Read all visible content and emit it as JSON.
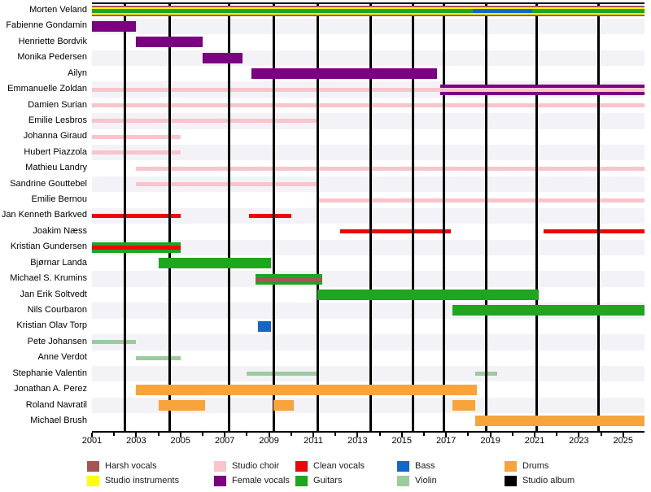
{
  "chart_data": {
    "type": "gantt",
    "description": "Band members timeline with roles as colored horizontal bars and studio album release dates as vertical black lines",
    "x_axis": {
      "start": 2001,
      "end": 2025.95,
      "tick_labels": [
        "2001",
        "2003",
        "2005",
        "2007",
        "2009",
        "2011",
        "2013",
        "2015",
        "2017",
        "2019",
        "2021",
        "2023",
        "2025"
      ],
      "minor_tick_years": [
        2002,
        2004,
        2006,
        2008,
        2010,
        2012,
        2014,
        2016,
        2018,
        2020,
        2022,
        2024
      ],
      "grid": "off"
    },
    "legend": [
      {
        "key": "harsh",
        "label": "Harsh vocals",
        "color": "#A85454"
      },
      {
        "key": "instruments",
        "label": "Studio instruments",
        "color": "#FFFF00"
      },
      {
        "key": "choir",
        "label": "Studio choir",
        "color": "#F9C4CC"
      },
      {
        "key": "female",
        "label": "Female vocals",
        "color": "#7B0082"
      },
      {
        "key": "clean",
        "label": "Clean vocals",
        "color": "#EE0505"
      },
      {
        "key": "guitars",
        "label": "Guitars",
        "color": "#1FA51F"
      },
      {
        "key": "bass",
        "label": "Bass",
        "color": "#1268C8"
      },
      {
        "key": "violin",
        "label": "Violin",
        "color": "#9CCB9C"
      },
      {
        "key": "drums",
        "label": "Drums",
        "color": "#F8A43C"
      },
      {
        "key": "album",
        "label": "Studio album",
        "color": "#000000"
      }
    ],
    "album_lines_years": [
      2002.5,
      2004.5,
      2007.2,
      2009.2,
      2011.2,
      2013.6,
      2015.5,
      2016.9,
      2018.8,
      2021.1,
      2023.9
    ],
    "members": [
      {
        "name": "Morten Veland",
        "segments": [
          {
            "role": "harsh",
            "start": 2001,
            "end": 2025.95
          },
          {
            "role": "instruments",
            "start": 2001,
            "end": 2025.95,
            "over": true
          },
          {
            "role": "guitars",
            "start": 2001,
            "end": 2025.95,
            "thin": true,
            "over": true
          },
          {
            "role": "bass",
            "start": 2018.2,
            "end": 2020.9,
            "thin": true,
            "over": true
          }
        ]
      },
      {
        "name": "Fabienne Gondamin",
        "segments": [
          {
            "role": "female",
            "start": 2001,
            "end": 2003
          }
        ]
      },
      {
        "name": "Henriette Bordvik",
        "segments": [
          {
            "role": "female",
            "start": 2003,
            "end": 2006
          }
        ]
      },
      {
        "name": "Monika Pedersen",
        "segments": [
          {
            "role": "female",
            "start": 2006,
            "end": 2007.8
          }
        ]
      },
      {
        "name": "Ailyn",
        "segments": [
          {
            "role": "female",
            "start": 2008.2,
            "end": 2016.6
          }
        ]
      },
      {
        "name": "Emmanuelle Zoldan",
        "segments": [
          {
            "role": "female",
            "start": 2016.75,
            "end": 2025.95
          },
          {
            "role": "choir",
            "start": 2001,
            "end": 2016.75
          },
          {
            "role": "choir",
            "start": 2016.75,
            "end": 2025.95,
            "over": true
          }
        ]
      },
      {
        "name": "Damien Surian",
        "segments": [
          {
            "role": "choir",
            "start": 2001,
            "end": 2025.95
          }
        ]
      },
      {
        "name": "Emilie Lesbros",
        "segments": [
          {
            "role": "choir",
            "start": 2001,
            "end": 2011.2
          }
        ]
      },
      {
        "name": "Johanna Giraud",
        "segments": [
          {
            "role": "choir",
            "start": 2001,
            "end": 2005
          }
        ]
      },
      {
        "name": "Hubert Piazzola",
        "segments": [
          {
            "role": "choir",
            "start": 2001,
            "end": 2005
          }
        ]
      },
      {
        "name": "Mathieu Landry",
        "segments": [
          {
            "role": "choir",
            "start": 2003,
            "end": 2025.95
          }
        ]
      },
      {
        "name": "Sandrine Gouttebel",
        "segments": [
          {
            "role": "choir",
            "start": 2003,
            "end": 2011.2
          }
        ]
      },
      {
        "name": "Emilie Bernou",
        "segments": [
          {
            "role": "choir",
            "start": 2011.2,
            "end": 2025.95
          }
        ]
      },
      {
        "name": "Jan Kenneth Barkved",
        "segments": [
          {
            "role": "clean",
            "start": 2001,
            "end": 2005
          },
          {
            "role": "clean",
            "start": 2008.1,
            "end": 2010
          }
        ]
      },
      {
        "name": "Joakim Næss",
        "segments": [
          {
            "role": "clean",
            "start": 2012.2,
            "end": 2017.2
          },
          {
            "role": "clean",
            "start": 2021.4,
            "end": 2025.95
          }
        ]
      },
      {
        "name": "Kristian Gundersen",
        "segments": [
          {
            "role": "guitars",
            "start": 2001,
            "end": 2005
          },
          {
            "role": "clean",
            "start": 2001,
            "end": 2005,
            "over": true
          }
        ]
      },
      {
        "name": "Bjørnar Landa",
        "segments": [
          {
            "role": "guitars",
            "start": 2004,
            "end": 2009.1
          }
        ]
      },
      {
        "name": "Michael S. Krumins",
        "segments": [
          {
            "role": "guitars",
            "start": 2008.4,
            "end": 2011.4
          },
          {
            "role": "harsh",
            "start": 2008.4,
            "end": 2011.4,
            "thin": true,
            "over": true
          }
        ]
      },
      {
        "name": "Jan Erik Soltvedt",
        "segments": [
          {
            "role": "guitars",
            "start": 2011.2,
            "end": 2021.2
          }
        ]
      },
      {
        "name": "Nils Courbaron",
        "segments": [
          {
            "role": "guitars",
            "start": 2017.3,
            "end": 2025.95
          }
        ]
      },
      {
        "name": "Kristian Olav Torp",
        "segments": [
          {
            "role": "bass",
            "start": 2008.5,
            "end": 2009.1
          }
        ]
      },
      {
        "name": "Pete Johansen",
        "segments": [
          {
            "role": "violin",
            "start": 2001,
            "end": 2003
          }
        ]
      },
      {
        "name": "Anne Verdot",
        "segments": [
          {
            "role": "violin",
            "start": 2003,
            "end": 2005
          }
        ]
      },
      {
        "name": "Stephanie Valentin",
        "segments": [
          {
            "role": "violin",
            "start": 2008,
            "end": 2011.2
          },
          {
            "role": "violin",
            "start": 2018.3,
            "end": 2019.3
          }
        ]
      },
      {
        "name": "Jonathan A. Perez",
        "segments": [
          {
            "role": "drums",
            "start": 2003,
            "end": 2018.4
          }
        ]
      },
      {
        "name": "Roland Navratil",
        "segments": [
          {
            "role": "drums",
            "start": 2004,
            "end": 2006.1
          },
          {
            "role": "drums",
            "start": 2009.2,
            "end": 2010.1
          },
          {
            "role": "drums",
            "start": 2017.3,
            "end": 2018.3
          }
        ]
      },
      {
        "name": "Michael Brush",
        "segments": [
          {
            "role": "drums",
            "start": 2018.3,
            "end": 2025.95
          }
        ]
      }
    ]
  }
}
